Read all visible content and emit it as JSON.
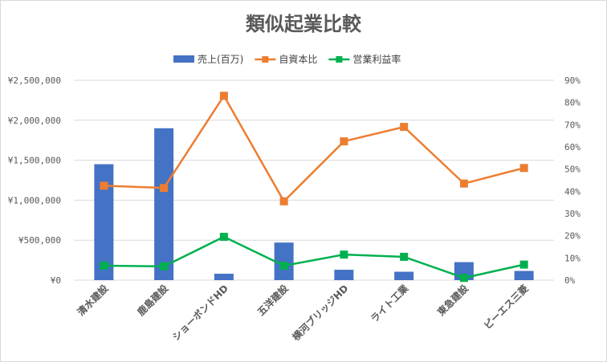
{
  "title": "類似起業比較",
  "colors": {
    "sales": "#4472c4",
    "equity": "#ed7d31",
    "margin": "#00b050",
    "grid": "#d9d9d9",
    "text": "#595959"
  },
  "chart_data": {
    "type": "bar",
    "title": "類似起業比較",
    "categories": [
      "清水建設",
      "鹿島建設",
      "ショーボンドHD",
      "五洋建設",
      "横河ブリッジHD",
      "ライト工業",
      "東急建設",
      "ピーエス三菱"
    ],
    "series": [
      {
        "name": "売上(百万)",
        "type": "bar",
        "axis": "left",
        "values": [
          1450000,
          1900000,
          80000,
          470000,
          130000,
          105000,
          225000,
          115000
        ]
      },
      {
        "name": "自資本比",
        "type": "line",
        "axis": "right",
        "marker": "square",
        "values": [
          0.425,
          0.415,
          0.83,
          0.355,
          0.625,
          0.69,
          0.435,
          0.505
        ]
      },
      {
        "name": "営業利益率",
        "type": "line",
        "axis": "right",
        "marker": "square",
        "values": [
          0.065,
          0.062,
          0.195,
          0.065,
          0.115,
          0.105,
          0.01,
          0.07
        ]
      }
    ],
    "y_left": {
      "min": 0,
      "max": 2500000,
      "ticks": [
        0,
        500000,
        1000000,
        1500000,
        2000000,
        2500000
      ],
      "tick_labels": [
        "¥0",
        "¥500,000",
        "¥1,000,000",
        "¥1,500,000",
        "¥2,000,000",
        "¥2,500,000"
      ]
    },
    "y_right": {
      "min": 0,
      "max": 0.9,
      "ticks": [
        0,
        0.1,
        0.2,
        0.3,
        0.4,
        0.5,
        0.6,
        0.7,
        0.8,
        0.9
      ],
      "tick_labels": [
        "0%",
        "10%",
        "20%",
        "30%",
        "40%",
        "50%",
        "60%",
        "70%",
        "80%",
        "90%"
      ]
    },
    "grid": true,
    "legend_position": "top"
  }
}
